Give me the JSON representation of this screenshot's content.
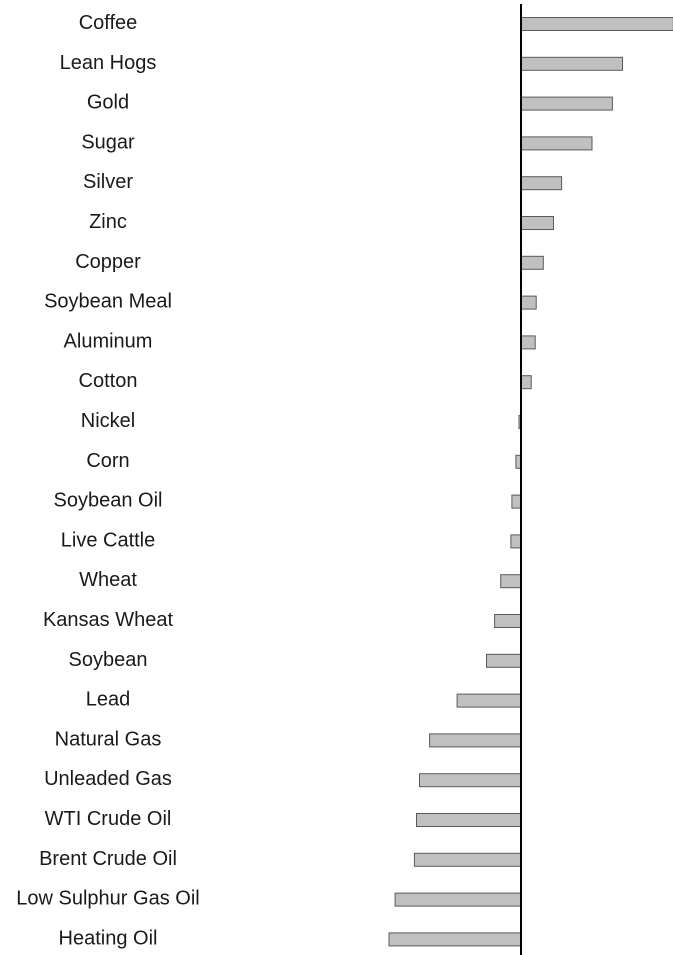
{
  "chart_data": {
    "type": "bar",
    "orientation": "horizontal",
    "categories": [
      "Coffee",
      "Lean Hogs",
      "Gold",
      "Sugar",
      "Silver",
      "Zinc",
      "Copper",
      "Soybean Meal",
      "Aluminum",
      "Cotton",
      "Nickel",
      "Corn",
      "Soybean Oil",
      "Live Cattle",
      "Wheat",
      "Kansas Wheat",
      "Soybean",
      "Lead",
      "Natural Gas",
      "Unleaded Gas",
      "WTI Crude Oil",
      "Brent Crude Oil",
      "Low Sulphur Gas Oil",
      "Heating Oil"
    ],
    "values": [
      15.0,
      10.0,
      9.0,
      7.0,
      4.0,
      3.2,
      2.2,
      1.5,
      1.4,
      1.0,
      -0.2,
      -0.5,
      -0.9,
      -1.0,
      -2.0,
      -2.6,
      -3.4,
      -6.3,
      -9.0,
      -10.0,
      -10.3,
      -10.5,
      -12.4,
      -13.0
    ],
    "xlim": [
      -13,
      15
    ],
    "title": "",
    "xlabel": "",
    "ylabel": "",
    "grid": false,
    "colors": {
      "bar_fill": "#c0c0c0",
      "bar_edge": "#5a5a5a",
      "axis": "#000000",
      "label": "#1a1a1a"
    }
  }
}
